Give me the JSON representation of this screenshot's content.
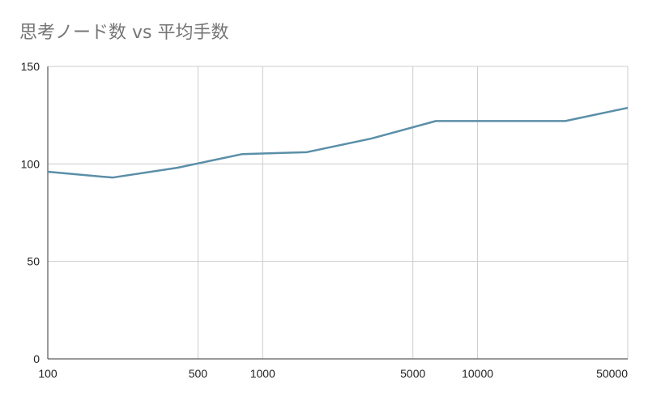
{
  "chart_data": {
    "type": "line",
    "title": "思考ノード数 vs 平均手数",
    "xlabel": "",
    "ylabel": "",
    "x_scale": "log",
    "xlim": [
      100,
      50000
    ],
    "ylim": [
      0,
      150
    ],
    "x_ticks": [
      100,
      500,
      1000,
      5000,
      10000,
      50000
    ],
    "x_tick_labels": [
      "100",
      "500",
      "1000",
      "5000",
      "10000",
      "50000"
    ],
    "y_ticks": [
      0,
      50,
      100,
      150
    ],
    "y_tick_labels": [
      "0",
      "50",
      "100",
      "150"
    ],
    "grid": true,
    "legend": "none",
    "colors": {
      "line": "#5b8fa8",
      "grid": "#cccccc",
      "axis": "#333333",
      "title": "#757575"
    },
    "series": [
      {
        "x": [
          100,
          200,
          400,
          800,
          1600,
          3200,
          6400,
          12800,
          25600,
          51200
        ],
        "values": [
          96,
          93,
          98,
          105,
          106,
          113,
          122,
          122,
          122,
          129
        ]
      }
    ]
  }
}
